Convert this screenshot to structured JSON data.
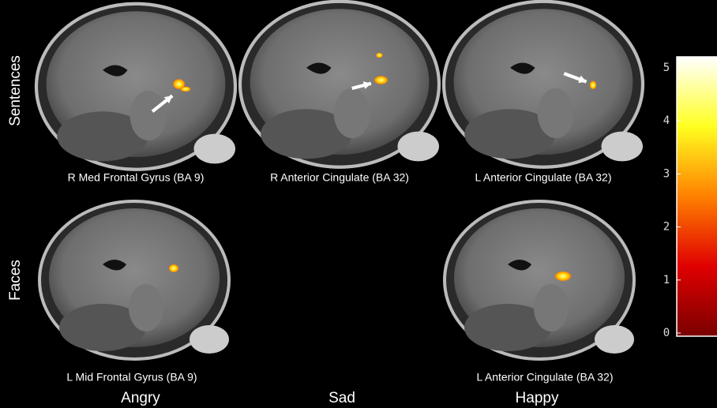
{
  "row_labels": [
    "Sentences",
    "Faces"
  ],
  "column_labels": [
    "Angry",
    "Sad",
    "Happy"
  ],
  "panels": [
    {
      "caption": "R Med Frontal Gyrus (BA 9)"
    },
    {
      "caption": "R Anterior Cingulate (BA 32)"
    },
    {
      "caption": "L Anterior Cingulate (BA 32)"
    },
    {
      "caption": "L Mid Frontal Gyrus (BA 9)"
    },
    {
      "caption": "L Anterior Cingulate  (BA 32)"
    }
  ],
  "colorbar": {
    "ticks": [
      0,
      1,
      2,
      3,
      4,
      5
    ]
  }
}
